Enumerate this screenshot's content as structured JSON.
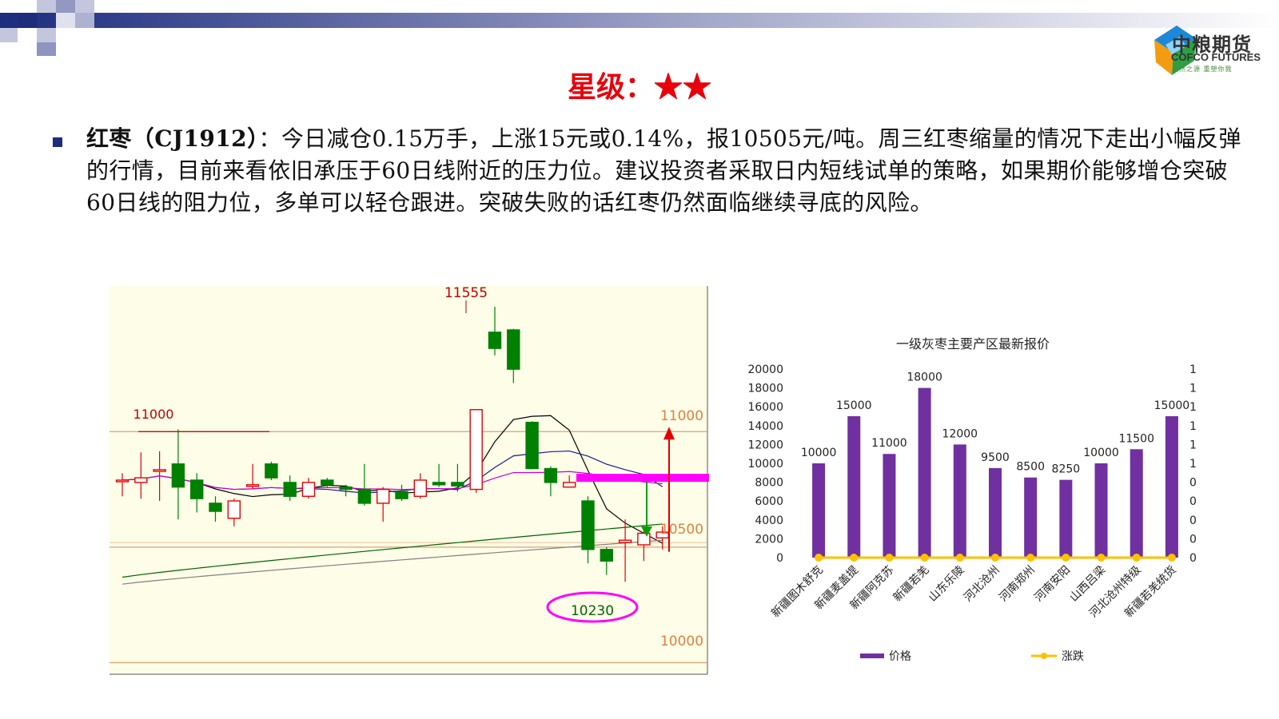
{
  "header": {
    "logo": {
      "cn": "中粮期货",
      "en": "COFCO FUTURES",
      "slogan": "自然之源 重塑你我"
    }
  },
  "rating": {
    "label": "星级：",
    "stars": "★★"
  },
  "commentary": {
    "title": "红枣（CJ1912）",
    "body": "：今日减仓0.15万手，上涨15元或0.14%，报10505元/吨。周三红枣缩量的情况下走出小幅反弹的行情，目前来看依旧承压于60日线附近的压力位。建议投资者采取日内短线试单的策略，如果期价能够增仓突破60日线的阻力位，多单可以轻仓跟进。突破失败的话红枣仍然面临继续寻底的风险。"
  },
  "colors": {
    "up": "#e60000",
    "down": "#008000",
    "kline_bg": "#fdfde8",
    "bar": "#7030a0",
    "change_line": "#ffc000",
    "annotation": "#ff00ff",
    "star": "#e8000b"
  },
  "chart_data": [
    {
      "type": "candlestick",
      "annotations": {
        "high": "11555",
        "low": "10230",
        "left_level": "11000"
      },
      "right_levels": [
        "11000",
        "10500",
        "10000"
      ],
      "ylim": [
        9950,
        11630
      ],
      "candles": [
        {
          "o": 10790,
          "c": 10790,
          "h": 10820,
          "l": 10720
        },
        {
          "o": 10780,
          "c": 10800,
          "h": 10910,
          "l": 10710
        },
        {
          "o": 10830,
          "c": 10835,
          "h": 10915,
          "l": 10700
        },
        {
          "o": 10860,
          "c": 10760,
          "h": 11010,
          "l": 10620
        },
        {
          "o": 10790,
          "c": 10710,
          "h": 10820,
          "l": 10650
        },
        {
          "o": 10690,
          "c": 10655,
          "h": 10720,
          "l": 10610
        },
        {
          "o": 10625,
          "c": 10700,
          "h": 10710,
          "l": 10590
        },
        {
          "o": 10770,
          "c": 10770,
          "h": 10860,
          "l": 10750
        },
        {
          "o": 10860,
          "c": 10800,
          "h": 10870,
          "l": 10790
        },
        {
          "o": 10780,
          "c": 10720,
          "h": 10810,
          "l": 10700
        },
        {
          "o": 10720,
          "c": 10780,
          "h": 10800,
          "l": 10710
        },
        {
          "o": 10790,
          "c": 10770,
          "h": 10800,
          "l": 10760
        },
        {
          "o": 10760,
          "c": 10750,
          "h": 10770,
          "l": 10720
        },
        {
          "o": 10750,
          "c": 10690,
          "h": 10860,
          "l": 10680
        },
        {
          "o": 10690,
          "c": 10750,
          "h": 10760,
          "l": 10610
        },
        {
          "o": 10740,
          "c": 10710,
          "h": 10770,
          "l": 10700
        },
        {
          "o": 10720,
          "c": 10790,
          "h": 10820,
          "l": 10710
        },
        {
          "o": 10780,
          "c": 10770,
          "h": 10860,
          "l": 10760
        },
        {
          "o": 10780,
          "c": 10765,
          "h": 10860,
          "l": 10740
        },
        {
          "o": 10750,
          "c": 11095,
          "h": 11095,
          "l": 10735
        },
        {
          "o": 11430,
          "c": 11360,
          "h": 11540,
          "l": 11330
        },
        {
          "o": 11440,
          "c": 11270,
          "h": 11445,
          "l": 11210
        },
        {
          "o": 11040,
          "c": 10840,
          "h": 11045,
          "l": 10840
        },
        {
          "o": 10840,
          "c": 10780,
          "h": 10850,
          "l": 10720
        },
        {
          "o": 10760,
          "c": 10780,
          "h": 10810,
          "l": 10760
        },
        {
          "o": 10700,
          "c": 10490,
          "h": 10720,
          "l": 10430
        },
        {
          "o": 10490,
          "c": 10440,
          "h": 10500,
          "l": 10380
        },
        {
          "o": 10520,
          "c": 10530,
          "h": 10620,
          "l": 10350
        },
        {
          "o": 10510,
          "c": 10560,
          "h": 10580,
          "l": 10440
        },
        {
          "o": 10540,
          "c": 10565,
          "h": 10590,
          "l": 10490
        }
      ]
    },
    {
      "type": "bar",
      "title": "一级灰枣主要产区最新报价",
      "categories": [
        "新疆图木舒克",
        "新疆麦盖提",
        "新疆阿克苏",
        "新疆若羌",
        "山东乐陵",
        "河北沧州",
        "河南郑州",
        "河南安阳",
        "山西吕梁",
        "河北沧州特级",
        "新疆若羌统货"
      ],
      "series": [
        {
          "name": "价格",
          "values": [
            10000,
            15000,
            11000,
            18000,
            12000,
            9500,
            8500,
            8250,
            10000,
            11500,
            15000
          ],
          "labels": [
            "10000",
            "15000",
            "11000",
            "18000",
            "12000",
            "9500",
            "8500",
            "8250",
            "10000",
            "11500",
            "15000"
          ]
        },
        {
          "name": "涨跌",
          "values": [
            0,
            0,
            0,
            0,
            0,
            0,
            0,
            0,
            0,
            0,
            0
          ]
        }
      ],
      "ylim": [
        0,
        20000
      ],
      "y_ticks": [
        "0",
        "2000",
        "4000",
        "6000",
        "8000",
        "10000",
        "12000",
        "14000",
        "16000",
        "18000",
        "20000"
      ],
      "y2_ticks": [
        "0",
        "0",
        "0",
        "0",
        "0",
        "1",
        "1",
        "1",
        "1",
        "1",
        "1"
      ]
    }
  ]
}
